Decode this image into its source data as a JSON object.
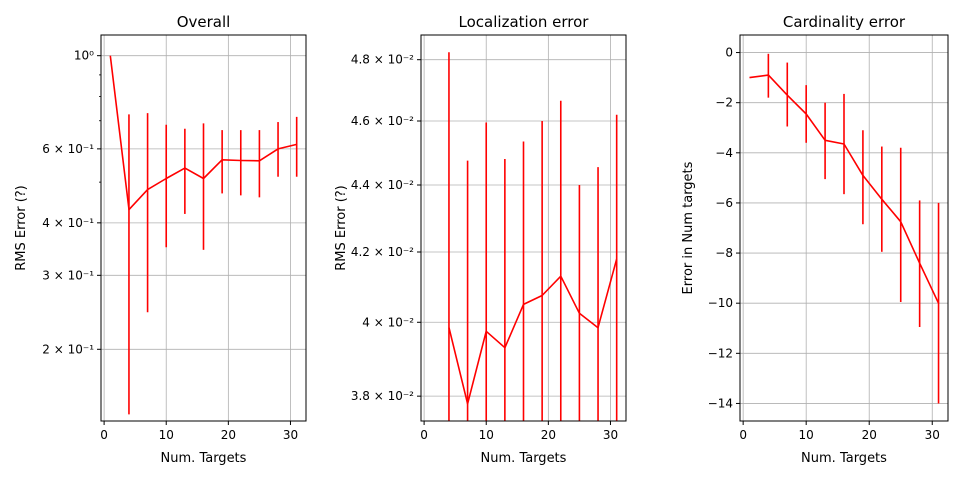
{
  "chart_data": [
    {
      "type": "line",
      "title": "Overall",
      "xlabel": "Num. Targets",
      "ylabel": "RMS Error (?)",
      "yscale": "log",
      "grid": true,
      "xlim": [
        -0.5,
        32.5
      ],
      "ylim": [
        0.135,
        1.12
      ],
      "color": "#ff0000",
      "x": [
        1,
        4,
        7,
        10,
        13,
        16,
        19,
        22,
        25,
        28,
        31
      ],
      "y": [
        1.0,
        0.43,
        0.48,
        0.51,
        0.54,
        0.51,
        0.565,
        0.563,
        0.562,
        0.6,
        0.615
      ],
      "err_low": [
        null,
        0.14,
        0.245,
        0.35,
        0.42,
        0.345,
        0.47,
        0.465,
        0.46,
        0.515,
        0.515
      ],
      "err_high": [
        null,
        0.725,
        0.73,
        0.685,
        0.67,
        0.69,
        0.665,
        0.665,
        0.665,
        0.695,
        0.715
      ],
      "xticks": [
        "0",
        "10",
        "20",
        "30"
      ],
      "yticks": [
        "2 × 10⁻¹",
        "3 × 10⁻¹",
        "4 × 10⁻¹",
        "6 × 10⁻¹",
        "10⁰"
      ]
    },
    {
      "type": "line",
      "title": "Localization error",
      "xlabel": "Num. Targets",
      "ylabel": "RMS Error (?)",
      "yscale": "log",
      "grid": true,
      "xlim": [
        -0.5,
        32.5
      ],
      "ylim": [
        0.03735,
        0.04883
      ],
      "color": "#ff0000",
      "x": [
        4,
        7,
        10,
        13,
        16,
        19,
        22,
        25,
        28,
        31
      ],
      "y": [
        0.03985,
        0.0378,
        0.03975,
        0.0393,
        0.0405,
        0.04075,
        0.0413,
        0.04025,
        0.03985,
        0.0418
      ],
      "err_low": [
        0.0373,
        0.0373,
        0.0373,
        0.0373,
        0.0373,
        0.0373,
        0.0373,
        0.0373,
        0.0373,
        0.0373
      ],
      "err_high": [
        0.04825,
        0.04475,
        0.04595,
        0.0448,
        0.04535,
        0.046,
        0.04665,
        0.044,
        0.04455,
        0.0462
      ],
      "xticks": [
        "0",
        "10",
        "20",
        "30"
      ],
      "yticks": [
        "3.8 × 10⁻²",
        "4 × 10⁻²",
        "4.2 × 10⁻²",
        "4.4 × 10⁻²",
        "4.6 × 10⁻²",
        "4.8 × 10⁻²"
      ]
    },
    {
      "type": "line",
      "title": "Cardinality error",
      "xlabel": "Num. Targets",
      "ylabel": "Error in Num targets",
      "yscale": "linear",
      "grid": true,
      "xlim": [
        -0.5,
        32.5
      ],
      "ylim": [
        -14.7,
        0.7
      ],
      "color": "#ff0000",
      "x": [
        1,
        4,
        7,
        10,
        13,
        16,
        19,
        22,
        25,
        28,
        31
      ],
      "y": [
        -1.0,
        -0.9,
        -1.7,
        -2.45,
        -3.5,
        -3.65,
        -4.9,
        -5.85,
        -6.75,
        -8.4,
        -10.0
      ],
      "err_low": [
        null,
        -1.8,
        -2.95,
        -3.6,
        -5.05,
        -5.65,
        -6.85,
        -7.95,
        -9.95,
        -10.95,
        -14.0
      ],
      "err_high": [
        null,
        -0.05,
        -0.4,
        -1.3,
        -2.0,
        -1.65,
        -3.1,
        -3.75,
        -3.8,
        -5.9,
        -6.0
      ],
      "xticks": [
        "0",
        "10",
        "20",
        "30"
      ],
      "yticks": [
        "0",
        "−2",
        "−4",
        "−6",
        "−8",
        "−10",
        "−12",
        "−14"
      ]
    }
  ]
}
